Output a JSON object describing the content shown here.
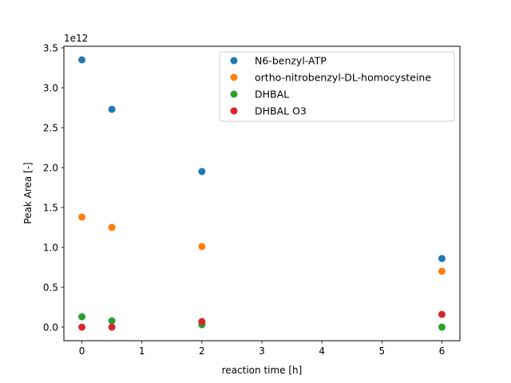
{
  "chart_data": {
    "type": "scatter",
    "xlabel": "reaction time [h]",
    "ylabel": "Peak Area [-]",
    "y_multiplier_label": "1e12",
    "xlim": [
      -0.3,
      6.3
    ],
    "ylim": [
      -0.17,
      3.52
    ],
    "xticks": [
      0,
      1,
      2,
      3,
      4,
      5,
      6
    ],
    "xtick_labels": [
      "0",
      "1",
      "2",
      "3",
      "4",
      "5",
      "6"
    ],
    "yticks": [
      0.0,
      0.5,
      1.0,
      1.5,
      2.0,
      2.5,
      3.0,
      3.5
    ],
    "ytick_labels": [
      "0.0",
      "0.5",
      "1.0",
      "1.5",
      "2.0",
      "2.5",
      "3.0",
      "3.5"
    ],
    "grid": false,
    "legend_position": "top-right",
    "series": [
      {
        "name": "N6-benzyl-ATP",
        "color": "#1f77b4",
        "x": [
          0,
          0.5,
          2,
          6
        ],
        "y": [
          3.35,
          2.73,
          1.95,
          0.86
        ]
      },
      {
        "name": "ortho-nitrobenzyl-DL-homocysteine",
        "color": "#ff7f0e",
        "x": [
          0,
          0.5,
          2,
          6
        ],
        "y": [
          1.38,
          1.25,
          1.01,
          0.7
        ]
      },
      {
        "name": "DHBAL",
        "color": "#2ca02c",
        "x": [
          0,
          0.5,
          2,
          6
        ],
        "y": [
          0.13,
          0.08,
          0.03,
          0.0
        ]
      },
      {
        "name": "DHBAL O3",
        "color": "#d62728",
        "x": [
          0,
          0.5,
          2,
          6
        ],
        "y": [
          0.0,
          0.0,
          0.07,
          0.16
        ]
      }
    ]
  }
}
